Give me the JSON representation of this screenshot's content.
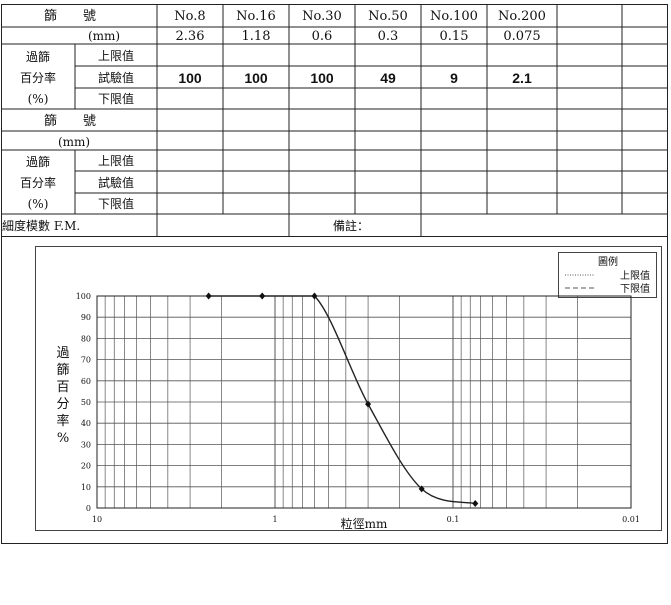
{
  "sieve_table": {
    "header_label_sieve": "篩　　號",
    "header_label_mm": "(mm)",
    "sieve_numbers": [
      "No.8",
      "No.16",
      "No.30",
      "No.50",
      "No.100",
      "No.200",
      "",
      ""
    ],
    "sieve_sizes_mm": [
      "2.36",
      "1.18",
      "0.6",
      "0.3",
      "0.15",
      "0.075",
      "",
      ""
    ],
    "pass_label_line1": "過篩",
    "pass_label_line2": "百分率",
    "pass_label_line3": "(%)",
    "row_upper": "上限值",
    "row_test": "試驗值",
    "row_lower": "下限值",
    "test_values": [
      "100",
      "100",
      "100",
      "49",
      "9",
      "2.1",
      "",
      ""
    ],
    "second_header_sieve": "篩　　號",
    "second_header_mm": "(mm)",
    "second_pass_line1": "過篩",
    "second_pass_line2": "百分率",
    "second_pass_line3": "(%)",
    "second_row_upper": "上限值",
    "second_row_test": "試驗值",
    "second_row_lower": "下限值",
    "fineness_label": "細度模數 F.M.",
    "remarks_label": "備註："
  },
  "legend": {
    "title": "圖例",
    "upper_label": "上限值",
    "lower_label": "下限值"
  },
  "chart_data": {
    "type": "line",
    "x_scale": "log",
    "x_reversed": true,
    "xlim": [
      10,
      0.01
    ],
    "ylim": [
      0,
      100
    ],
    "xlabel": "粒徑mm",
    "ylabel": "過篩百分率%",
    "x_tick_labels": [
      "10",
      "1",
      "0.1",
      "0.01"
    ],
    "y_ticks": [
      0,
      10,
      20,
      30,
      40,
      50,
      60,
      70,
      80,
      90,
      100
    ],
    "grid": true,
    "legend_position": "top-right",
    "series": [
      {
        "x": [
          2.36,
          1.18,
          0.6,
          0.3,
          0.15,
          0.075
        ],
        "y": [
          100,
          100,
          100,
          49,
          9,
          2.1
        ]
      }
    ]
  }
}
